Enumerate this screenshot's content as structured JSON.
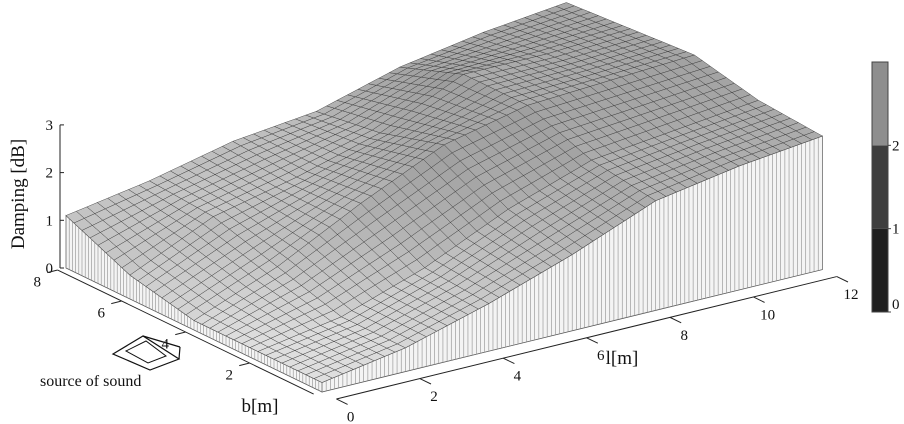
{
  "chart_data": {
    "type": "surface3d",
    "title": "",
    "zlabel": "Damping [dB]",
    "xlabel": "l[m]",
    "ylabel": "b[m]",
    "z_ticks": [
      "0",
      "1",
      "2",
      "3"
    ],
    "x_ticks": [
      "0",
      "2",
      "4",
      "6",
      "8",
      "10",
      "12"
    ],
    "y_ticks": [
      "2",
      "4",
      "6",
      "8"
    ],
    "zlim": [
      0,
      3
    ],
    "xlim": [
      0,
      12
    ],
    "ylim": [
      0,
      8
    ],
    "annotation": "source of sound",
    "colorbar": {
      "ticks": [
        "0",
        "1",
        "2"
      ],
      "bands": [
        {
          "from": 0,
          "to": 1,
          "color": "#202020"
        },
        {
          "from": 1,
          "to": 2,
          "color": "#3e3e3e"
        },
        {
          "from": 2,
          "to": 3,
          "color": "#8e8e8e"
        }
      ]
    },
    "b_values": [
      0,
      2,
      4,
      6,
      8
    ],
    "l_values": [
      0,
      2,
      4,
      6,
      8,
      10,
      12
    ],
    "damping": [
      [
        0.2,
        0.5,
        1.0,
        1.6,
        2.3,
        2.6,
        2.8
      ],
      [
        0.2,
        0.5,
        1.1,
        1.9,
        2.5,
        2.7,
        2.9
      ],
      [
        0.2,
        0.9,
        1.8,
        2.6,
        3.0,
        3.1,
        3.2
      ],
      [
        0.5,
        1.3,
        1.7,
        2.2,
        3.0,
        3.0,
        3.1
      ],
      [
        1.1,
        1.4,
        1.8,
        2.0,
        2.5,
        2.8,
        3.0
      ]
    ]
  }
}
